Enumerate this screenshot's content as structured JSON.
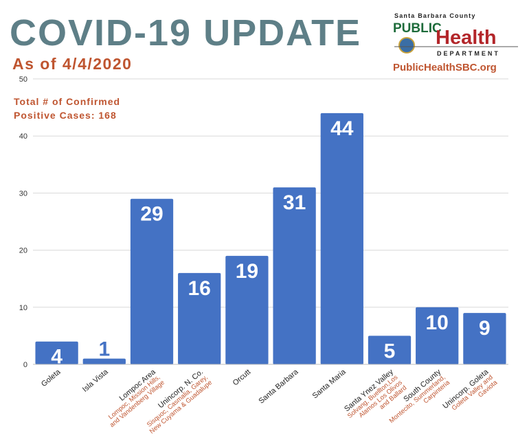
{
  "chart_data": {
    "type": "bar",
    "title": "COVID-19 UPDATE",
    "subtitle": "As of 4/4/2020",
    "annotation": [
      "Total # of Confirmed",
      "Positive Cases: 168"
    ],
    "logo": {
      "county": "Santa Barbara County",
      "public": "PUBLIC",
      "health": "Health",
      "department": "DEPARTMENT",
      "url": "PublicHealthSBC.org"
    },
    "categories": [
      "Goleta",
      "Isla Vista",
      "Lompoc Area",
      "Unincorp. N. Co.",
      "Orcutt",
      "Santa Barbara",
      "Santa Maria",
      "Santa Ynez Valley",
      "South County",
      "Unincorp. Goleta"
    ],
    "category_notes": [
      null,
      null,
      [
        "Lompoc, Mission Hills,",
        "and Vandenberg Village"
      ],
      [
        "Sisquoc, Casmalia, Garey,",
        "New Cuyama & Guadalupe"
      ],
      null,
      null,
      null,
      [
        "Solvang, Buellton,Los",
        "Alamos Los Olivos",
        "and Ballard"
      ],
      [
        "Montecito, Summerland,",
        "Carpinteria"
      ],
      [
        "Goleta Valley and",
        "Gaviota"
      ]
    ],
    "values": [
      4,
      1,
      29,
      16,
      19,
      31,
      44,
      5,
      10,
      9
    ],
    "color": "#4472c4",
    "ylim": [
      0,
      50
    ],
    "yticks": [
      0,
      10,
      20,
      30,
      40,
      50
    ],
    "grid": true
  }
}
